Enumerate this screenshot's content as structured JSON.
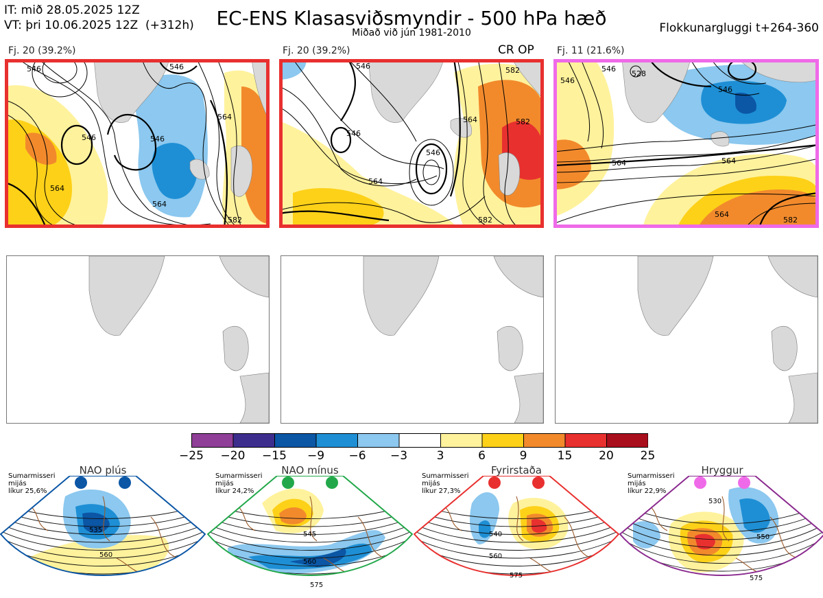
{
  "header": {
    "it": "IT: mið 28.05.2025 12Z",
    "vt": "VT: þri 10.06.2025 12Z  (+312h)",
    "title": "EC-ENS Klasasviðsmyndir - 500 hPa hæð",
    "subtitle": "Miðað við jún 1981-2010",
    "window": "Flokkunargluggi t+264-360"
  },
  "panels": [
    {
      "label": "Fj. 20 (39.2%)",
      "border": "#e8302f",
      "extra": ""
    },
    {
      "label": "Fj. 20 (39.2%)",
      "border": "#e8302f",
      "extra": "CR OP"
    },
    {
      "label": "Fj. 11 (21.6%)",
      "border": "#ef6ae8",
      "extra": ""
    }
  ],
  "contour_labels": {
    "p1": [
      "546",
      "546",
      "546",
      "546",
      "564",
      "564",
      "564",
      "582"
    ],
    "p2": [
      "546",
      "546",
      "546",
      "564",
      "564",
      "582",
      "582",
      "582"
    ],
    "p3": [
      "528",
      "546",
      "546",
      "546",
      "564",
      "564",
      "564",
      "582"
    ]
  },
  "chart_data": {
    "type": "heatmap",
    "title": "EC-ENS Klasasviðsmyndir - 500 hPa hæð",
    "colorbar": {
      "ticks": [
        "−25",
        "−20",
        "−15",
        "−9",
        "−6",
        "−3",
        "3",
        "6",
        "9",
        "15",
        "20",
        "25"
      ],
      "colors": [
        "#8f3f97",
        "#3d2e8e",
        "#0b56a5",
        "#1e8fd5",
        "#8cc8ef",
        "#ffffff",
        "#fff29c",
        "#fdd118",
        "#f28a2c",
        "#e8302f",
        "#a90e1d"
      ]
    }
  },
  "regimes": [
    {
      "title": "NAO plús",
      "note": "Sumarmisseri\nmijás\nlíkur 25,6%",
      "color": "#0b56a5",
      "labels": [
        "535",
        "560"
      ]
    },
    {
      "title": "NAO mínus",
      "note": "Sumarmisseri\nmijás\nlíkur 24,2%",
      "color": "#22a84a",
      "labels": [
        "545",
        "560",
        "575"
      ]
    },
    {
      "title": "Fyrirstaða",
      "note": "Sumarmisseri\nmijás\nlíkur 27,3%",
      "color": "#e8302f",
      "labels": [
        "540",
        "560",
        "575"
      ]
    },
    {
      "title": "Hryggur",
      "note": "Sumarmisseri\nmijás\nlíkur 22,9%",
      "color": "#8b2a8f",
      "dot_color": "#ef6ae8",
      "labels": [
        "530",
        "550",
        "575"
      ]
    }
  ]
}
